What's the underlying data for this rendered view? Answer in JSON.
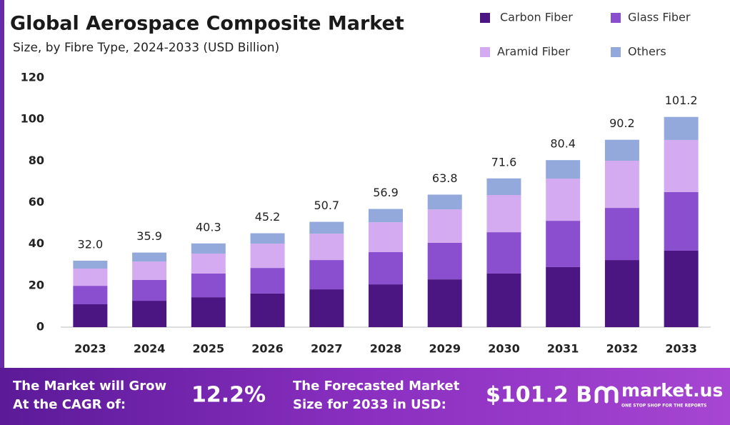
{
  "chart_data": {
    "type": "stacked_bar",
    "title": "Global Aerospace Composite Market",
    "subtitle": "Size, by Fibre Type, 2024-2033 (USD Billion)",
    "categories": [
      "2023",
      "2024",
      "2025",
      "2026",
      "2027",
      "2028",
      "2029",
      "2030",
      "2031",
      "2032",
      "2033"
    ],
    "series": [
      {
        "name": "Carbon Fiber",
        "color": "#4b1682",
        "values": [
          11.0,
          12.7,
          14.4,
          16.2,
          18.2,
          20.6,
          23.0,
          25.8,
          28.9,
          32.3,
          36.8
        ]
      },
      {
        "name": "Glass Fiber",
        "color": "#8a4fcf",
        "values": [
          8.9,
          10.0,
          11.4,
          12.3,
          14.1,
          15.5,
          17.6,
          19.9,
          22.3,
          25.1,
          28.2
        ]
      },
      {
        "name": "Aramid Fiber",
        "color": "#d4aaf0",
        "values": [
          8.3,
          8.9,
          9.6,
          11.7,
          12.7,
          14.4,
          16.1,
          17.9,
          20.3,
          22.7,
          25.1
        ]
      },
      {
        "name": "Others",
        "color": "#93a9dc",
        "values": [
          3.8,
          4.3,
          4.9,
          5.0,
          5.7,
          6.4,
          7.1,
          8.0,
          8.9,
          10.1,
          11.1
        ]
      }
    ],
    "total_labels": [
      "32.0",
      "35.9",
      "40.3",
      "45.2",
      "50.7",
      "56.9",
      "63.8",
      "71.6",
      "80.4",
      "90.2",
      "101.2"
    ],
    "ylim": [
      0,
      120
    ],
    "yticks": [
      0,
      20,
      40,
      60,
      80,
      100,
      120
    ],
    "grid": false
  },
  "footer": {
    "cagr_text": [
      "The Market will Grow",
      "At the CAGR of:"
    ],
    "cagr": "12.2%",
    "forecast_text": [
      "The Forecasted Market",
      "Size for 2033 in USD:"
    ],
    "forecast": "$101.2 B",
    "brand": "market.us",
    "tagline": "ONE STOP SHOP FOR THE REPORTS"
  }
}
